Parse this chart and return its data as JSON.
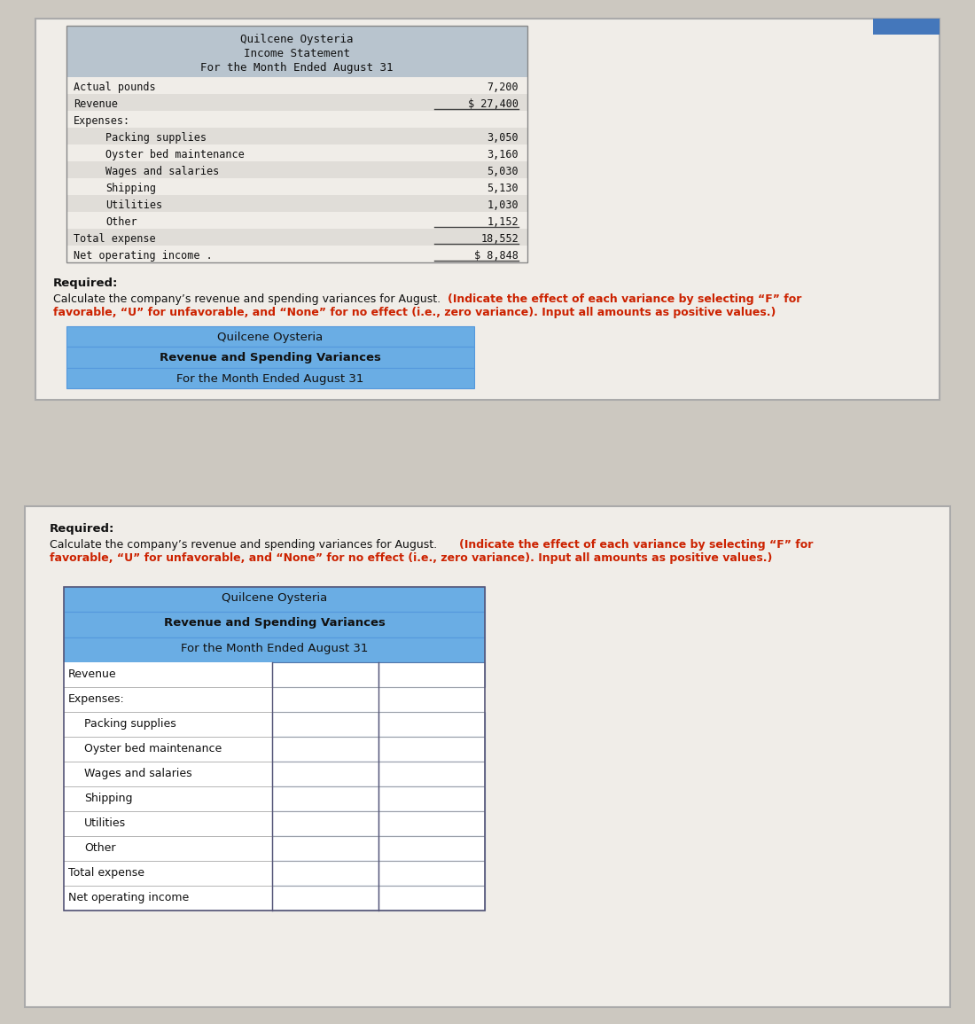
{
  "page_bg": "#ccc8c0",
  "panel_bg": "#f0ede8",
  "panel_border": "#aaaaaa",
  "header_bg_gray": "#b8c4ce",
  "header_bg_blue": "#6aade4",
  "header_divider_blue": "#5599dd",
  "table_border": "#5577aa",
  "row_alt_bg": "#e0ddd8",
  "row_white": "#f8f6f2",
  "text_dark": "#111111",
  "text_red": "#cc2200",
  "underline_color": "#444444",
  "panel1_title1": "Quilcene Oysteria",
  "panel1_title2": "Income Statement",
  "panel1_title3": "For the Month Ended August 31",
  "income_rows": [
    {
      "label": "Actual pounds",
      "indent": 0,
      "value": "7,200",
      "underline": false
    },
    {
      "label": "Revenue",
      "indent": 0,
      "value": "$ 27,400",
      "underline": true
    },
    {
      "label": "Expenses:",
      "indent": 0,
      "value": "",
      "underline": false
    },
    {
      "label": "Packing supplies",
      "indent": 2,
      "value": "3,050",
      "underline": false
    },
    {
      "label": "Oyster bed maintenance",
      "indent": 2,
      "value": "3,160",
      "underline": false
    },
    {
      "label": "Wages and salaries",
      "indent": 2,
      "value": "5,030",
      "underline": false
    },
    {
      "label": "Shipping",
      "indent": 2,
      "value": "5,130",
      "underline": false
    },
    {
      "label": "Utilities",
      "indent": 2,
      "value": "1,030",
      "underline": false
    },
    {
      "label": "Other",
      "indent": 2,
      "value": "1,152",
      "underline": true
    },
    {
      "label": "Total expense",
      "indent": 0,
      "value": "18,552",
      "underline": true
    },
    {
      "label": "Net operating income .",
      "indent": 0,
      "value": "$ 8,848",
      "underline": true
    }
  ],
  "req_bold": "Required:",
  "req_normal": "Calculate the company’s revenue and spending variances for August.",
  "req_bold_red1": "(Indicate the effect of each variance by selecting “F” for",
  "req_bold_red2": "favorable, “U” for unfavorable, and “None” for no effect (i.e., zero variance). Input all amounts as positive values.)",
  "panel2_title1": "Quilcene Oysteria",
  "panel2_title2": "Revenue and Spending Variances",
  "panel2_title3": "For the Month Ended August 31",
  "variance_rows": [
    {
      "label": "Revenue",
      "indent": 0,
      "no_cells": false
    },
    {
      "label": "Expenses:",
      "indent": 0,
      "no_cells": true
    },
    {
      "label": "Packing supplies",
      "indent": 1,
      "no_cells": false
    },
    {
      "label": "Oyster bed maintenance",
      "indent": 1,
      "no_cells": false
    },
    {
      "label": "Wages and salaries",
      "indent": 1,
      "no_cells": false
    },
    {
      "label": "Shipping",
      "indent": 1,
      "no_cells": false
    },
    {
      "label": "Utilities",
      "indent": 1,
      "no_cells": false
    },
    {
      "label": "Other",
      "indent": 1,
      "no_cells": false
    },
    {
      "label": "Total expense",
      "indent": 0,
      "no_cells": false
    },
    {
      "label": "Net operating income",
      "indent": 0,
      "no_cells": false
    }
  ],
  "blue_bar_color": "#4477bb"
}
